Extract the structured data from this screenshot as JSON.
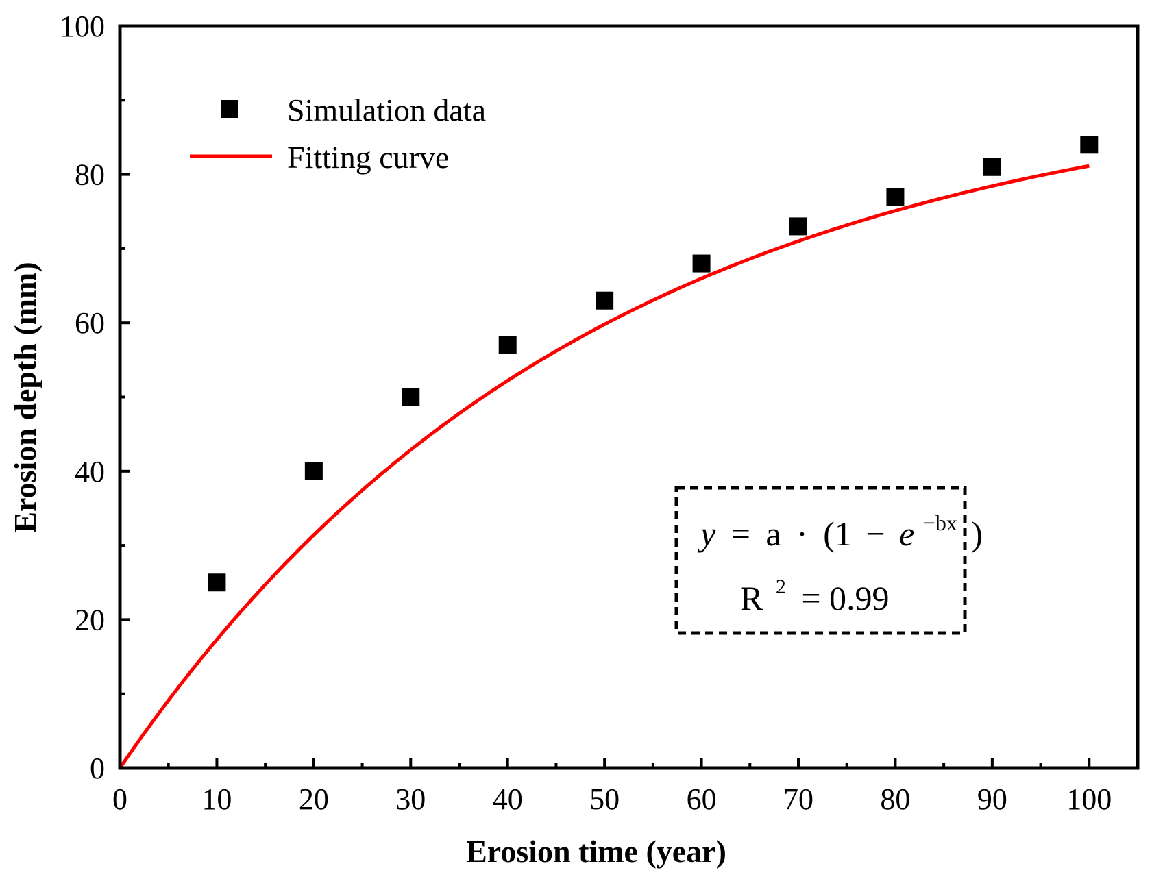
{
  "chart_data": {
    "type": "scatter",
    "title": "",
    "xlabel": "Erosion time (year)",
    "ylabel": "Erosion depth (mm)",
    "xlim": [
      0,
      105
    ],
    "ylim": [
      0,
      100
    ],
    "xticks": [
      0,
      10,
      20,
      30,
      40,
      50,
      60,
      70,
      80,
      90,
      100
    ],
    "xtick_labels": [
      "0",
      "10",
      "20",
      "30",
      "40",
      "50",
      "60",
      "70",
      "80",
      "90",
      "100"
    ],
    "yticks": [
      0,
      20,
      40,
      60,
      80,
      100
    ],
    "ytick_labels": [
      "0",
      "20",
      "40",
      "60",
      "80",
      "100"
    ],
    "x_minor_step": 5,
    "y_minor_step": 10,
    "series": [
      {
        "name": "Simulation data",
        "kind": "scatter",
        "marker": "square",
        "color": "#000000",
        "x": [
          10,
          20,
          30,
          40,
          50,
          60,
          70,
          80,
          90,
          100
        ],
        "y": [
          25,
          40,
          50,
          57,
          63,
          68,
          73,
          77,
          81,
          84
        ]
      },
      {
        "name": "Fitting curve",
        "kind": "line",
        "color": "#ff0000",
        "model": "exponential_saturation",
        "params": {
          "a": 93,
          "b": 0.0206
        },
        "x_range": [
          0,
          100
        ]
      }
    ],
    "legend": {
      "position": "top-left"
    },
    "annotation": {
      "equation": {
        "y": "y",
        "eq": "=",
        "a": "a",
        "dot": "·",
        "open": "(1",
        "minus": "−",
        "e": "e",
        "exp": "−bx",
        "close": ")"
      },
      "r2": {
        "r": "R",
        "sup": "2",
        "eq": "= 0.99"
      }
    }
  }
}
